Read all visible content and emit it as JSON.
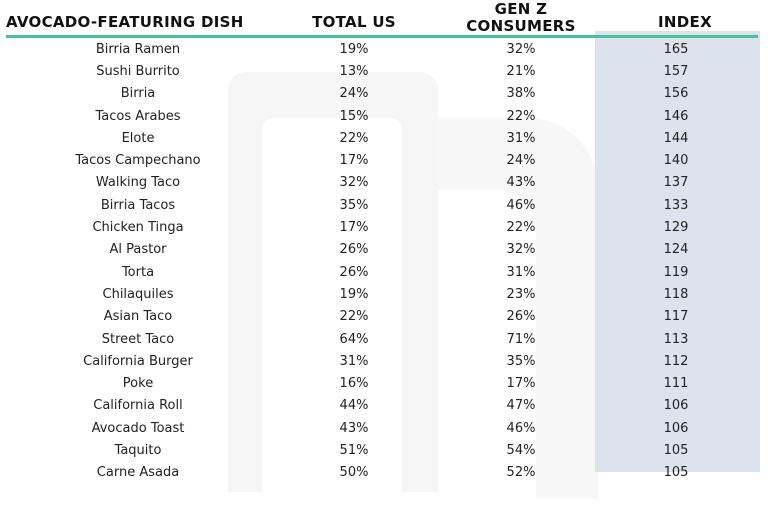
{
  "chart_data": {
    "type": "table",
    "columns": [
      "AVOCADO-FEATURING DISH",
      "TOTAL US",
      "GEN Z CONSUMERS",
      "INDEX"
    ],
    "rows": [
      [
        "Birria Ramen",
        "19%",
        "32%",
        "165"
      ],
      [
        "Sushi Burrito",
        "13%",
        "21%",
        "157"
      ],
      [
        "Birria",
        "24%",
        "38%",
        "156"
      ],
      [
        "Tacos Arabes",
        "15%",
        "22%",
        "146"
      ],
      [
        "Elote",
        "22%",
        "31%",
        "144"
      ],
      [
        "Tacos Campechano",
        "17%",
        "24%",
        "140"
      ],
      [
        "Walking Taco",
        "32%",
        "43%",
        "137"
      ],
      [
        "Birria Tacos",
        "35%",
        "46%",
        "133"
      ],
      [
        "Chicken Tinga",
        "17%",
        "22%",
        "129"
      ],
      [
        "Al Pastor",
        "26%",
        "32%",
        "124"
      ],
      [
        "Torta",
        "26%",
        "31%",
        "119"
      ],
      [
        "Chilaquiles",
        "19%",
        "23%",
        "118"
      ],
      [
        "Asian Taco",
        "22%",
        "26%",
        "117"
      ],
      [
        "Street Taco",
        "64%",
        "71%",
        "113"
      ],
      [
        "California Burger",
        "31%",
        "35%",
        "112"
      ],
      [
        "Poke",
        "16%",
        "17%",
        "111"
      ],
      [
        "California Roll",
        "44%",
        "47%",
        "106"
      ],
      [
        "Avocado Toast",
        "43%",
        "46%",
        "106"
      ],
      [
        "Taquito",
        "51%",
        "54%",
        "105"
      ],
      [
        "Carne Asada",
        "50%",
        "52%",
        "105"
      ]
    ]
  },
  "colors": {
    "header_rule": "#45c29a",
    "index_highlight": "#dde3ec"
  }
}
